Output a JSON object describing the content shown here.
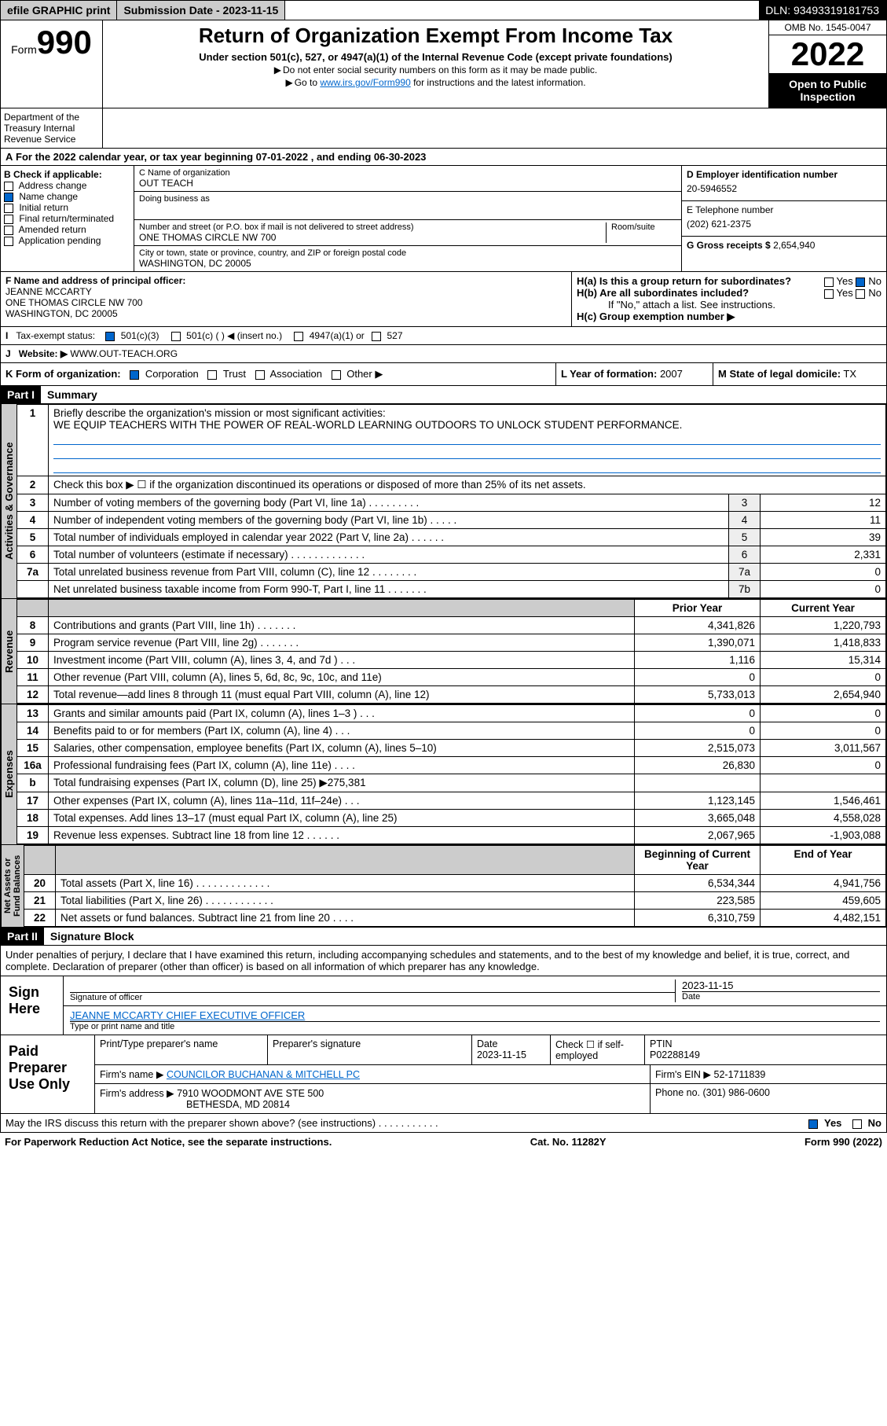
{
  "topbar": {
    "efile": "efile GRAPHIC print",
    "sub": "Submission Date - 2023-11-15",
    "dln": "DLN: 93493319181753"
  },
  "header": {
    "form": "Form",
    "num": "990",
    "omb": "OMB No. 1545-0047",
    "year": "2022",
    "title": "Return of Organization Exempt From Income Tax",
    "sub": "Under section 501(c), 527, or 4947(a)(1) of the Internal Revenue Code (except private foundations)",
    "note1": "Do not enter social security numbers on this form as it may be made public.",
    "note2": "Go to www.irs.gov/Form990 for instructions and the latest information.",
    "open": "Open to Public Inspection",
    "dept": "Department of the Treasury Internal Revenue Service"
  },
  "A": {
    "line": "For the 2022 calendar year, or tax year beginning 07-01-2022    , and ending 06-30-2023"
  },
  "B": {
    "hdr": "B Check if applicable:",
    "items": [
      "Address change",
      "Name change",
      "Initial return",
      "Final return/terminated",
      "Amended return",
      "Application pending"
    ],
    "checked_idx": 1
  },
  "C": {
    "label": "C Name of organization",
    "name": "OUT TEACH",
    "dba_lbl": "Doing business as",
    "addr_lbl": "Number and street (or P.O. box if mail is not delivered to street address)",
    "addr": "ONE THOMAS CIRCLE NW 700",
    "room_lbl": "Room/suite",
    "city_lbl": "City or town, state or province, country, and ZIP or foreign postal code",
    "city": "WASHINGTON, DC  20005"
  },
  "D": {
    "label": "D Employer identification number",
    "ein": "20-5946552"
  },
  "E": {
    "label": "E Telephone number",
    "phone": "(202) 621-2375"
  },
  "G": {
    "label": "G Gross receipts $",
    "amount": "2,654,940"
  },
  "F": {
    "label": "F  Name and address of principal officer:",
    "name": "JEANNE MCCARTY",
    "addr1": "ONE THOMAS CIRCLE NW 700",
    "addr2": "WASHINGTON, DC  20005"
  },
  "H": {
    "a": "H(a)  Is this a group return for subordinates?",
    "b": "H(b)  Are all subordinates included?",
    "note": "If \"No,\" attach a list. See instructions.",
    "c": "H(c)  Group exemption number ▶",
    "yes": "Yes",
    "no": "No"
  },
  "I": {
    "label": "Tax-exempt status:",
    "opts": [
      "501(c)(3)",
      "501(c) (  ) ◀ (insert no.)",
      "4947(a)(1) or",
      "527"
    ]
  },
  "J": {
    "label": "Website: ▶",
    "val": "WWW.OUT-TEACH.ORG"
  },
  "K": {
    "label": "K Form of organization:",
    "opts": [
      "Corporation",
      "Trust",
      "Association",
      "Other ▶"
    ]
  },
  "L": {
    "label": "L Year of formation:",
    "val": "2007"
  },
  "M": {
    "label": "M State of legal domicile:",
    "val": "TX"
  },
  "part1": {
    "hdr": "Part I",
    "title": "Summary"
  },
  "summary": {
    "q1": "Briefly describe the organization's mission or most significant activities:",
    "mission": "WE EQUIP TEACHERS WITH THE POWER OF REAL-WORLD LEARNING OUTDOORS TO UNLOCK STUDENT PERFORMANCE.",
    "q2": "Check this box ▶ ☐  if the organization discontinued its operations or disposed of more than 25% of its net assets.",
    "rows_gov": [
      {
        "n": "3",
        "t": "Number of voting members of the governing body (Part VI, line 1a)  .    .    .    .    .    .    .    .    .",
        "b": "3",
        "v": "12"
      },
      {
        "n": "4",
        "t": "Number of independent voting members of the governing body (Part VI, line 1b)  .    .    .    .    .",
        "b": "4",
        "v": "11"
      },
      {
        "n": "5",
        "t": "Total number of individuals employed in calendar year 2022 (Part V, line 2a)  .    .    .    .    .    .",
        "b": "5",
        "v": "39"
      },
      {
        "n": "6",
        "t": "Total number of volunteers (estimate if necessary)  .    .    .    .    .    .    .    .    .    .    .    .    .",
        "b": "6",
        "v": "2,331"
      },
      {
        "n": "7a",
        "t": "Total unrelated business revenue from Part VIII, column (C), line 12  .    .    .    .    .    .    .    .",
        "b": "7a",
        "v": "0"
      },
      {
        "n": "",
        "t": "Net unrelated business taxable income from Form 990-T, Part I, line 11  .    .    .    .    .    .    .",
        "b": "7b",
        "v": "0"
      }
    ],
    "py": "Prior Year",
    "cy": "Current Year",
    "rows_rev": [
      {
        "n": "8",
        "t": "Contributions and grants (Part VIII, line 1h)  .    .    .    .    .    .    .",
        "p": "4,341,826",
        "c": "1,220,793"
      },
      {
        "n": "9",
        "t": "Program service revenue (Part VIII, line 2g)  .    .    .    .    .    .    .",
        "p": "1,390,071",
        "c": "1,418,833"
      },
      {
        "n": "10",
        "t": "Investment income (Part VIII, column (A), lines 3, 4, and 7d )  .    .    .",
        "p": "1,116",
        "c": "15,314"
      },
      {
        "n": "11",
        "t": "Other revenue (Part VIII, column (A), lines 5, 6d, 8c, 9c, 10c, and 11e)",
        "p": "0",
        "c": "0"
      },
      {
        "n": "12",
        "t": "Total revenue—add lines 8 through 11 (must equal Part VIII, column (A), line 12)",
        "p": "5,733,013",
        "c": "2,654,940"
      }
    ],
    "rows_exp": [
      {
        "n": "13",
        "t": "Grants and similar amounts paid (Part IX, column (A), lines 1–3 )  .    .    .",
        "p": "0",
        "c": "0"
      },
      {
        "n": "14",
        "t": "Benefits paid to or for members (Part IX, column (A), line 4)  .    .    .",
        "p": "0",
        "c": "0"
      },
      {
        "n": "15",
        "t": "Salaries, other compensation, employee benefits (Part IX, column (A), lines 5–10)",
        "p": "2,515,073",
        "c": "3,011,567"
      },
      {
        "n": "16a",
        "t": "Professional fundraising fees (Part IX, column (A), line 11e)  .    .    .    .",
        "p": "26,830",
        "c": "0"
      },
      {
        "n": "b",
        "t": "Total fundraising expenses (Part IX, column (D), line 25) ▶275,381",
        "p": "",
        "c": ""
      },
      {
        "n": "17",
        "t": "Other expenses (Part IX, column (A), lines 11a–11d, 11f–24e)  .    .    .",
        "p": "1,123,145",
        "c": "1,546,461"
      },
      {
        "n": "18",
        "t": "Total expenses. Add lines 13–17 (must equal Part IX, column (A), line 25)",
        "p": "3,665,048",
        "c": "4,558,028"
      },
      {
        "n": "19",
        "t": "Revenue less expenses. Subtract line 18 from line 12  .    .    .    .    .    .",
        "p": "2,067,965",
        "c": "-1,903,088"
      }
    ],
    "boy": "Beginning of Current Year",
    "eoy": "End of Year",
    "rows_net": [
      {
        "n": "20",
        "t": "Total assets (Part X, line 16)  .    .    .    .    .    .    .    .    .    .    .    .    .",
        "p": "6,534,344",
        "c": "4,941,756"
      },
      {
        "n": "21",
        "t": "Total liabilities (Part X, line 26)  .    .    .    .    .    .    .    .    .    .    .    .",
        "p": "223,585",
        "c": "459,605"
      },
      {
        "n": "22",
        "t": "Net assets or fund balances. Subtract line 21 from line 20  .    .    .    .",
        "p": "6,310,759",
        "c": "4,482,151"
      }
    ]
  },
  "part2": {
    "hdr": "Part II",
    "title": "Signature Block",
    "intro": "Under penalties of perjury, I declare that I have examined this return, including accompanying schedules and statements, and to the best of my knowledge and belief, it is true, correct, and complete. Declaration of preparer (other than officer) is based on all information of which preparer has any knowledge.",
    "sign": "Sign Here",
    "sig_officer": "Signature of officer",
    "date": "Date",
    "sig_date": "2023-11-15",
    "officer": "JEANNE MCCARTY CHIEF EXECUTIVE OFFICER",
    "type_lbl": "Type or print name and title"
  },
  "paid": {
    "label": "Paid Preparer Use Only",
    "h1": "Print/Type preparer's name",
    "h2": "Preparer's signature",
    "h3": "Date",
    "h3v": "2023-11-15",
    "h4": "Check ☐ if self-employed",
    "h5": "PTIN",
    "h5v": "P02288149",
    "firm_lbl": "Firm's name   ▶",
    "firm": "COUNCILOR BUCHANAN & MITCHELL PC",
    "ein_lbl": "Firm's EIN ▶",
    "ein": "52-1711839",
    "addr_lbl": "Firm's address ▶",
    "addr": "7910 WOODMONT AVE STE 500",
    "city": "BETHESDA, MD  20814",
    "phone_lbl": "Phone no.",
    "phone": "(301) 986-0600"
  },
  "footer": {
    "q": "May the IRS discuss this return with the preparer shown above? (see instructions)  .    .    .    .    .    .    .    .    .    .    .",
    "yes": "Yes",
    "no": "No",
    "paperwork": "For Paperwork Reduction Act Notice, see the separate instructions.",
    "cat": "Cat. No. 11282Y",
    "form": "Form 990 (2022)"
  }
}
